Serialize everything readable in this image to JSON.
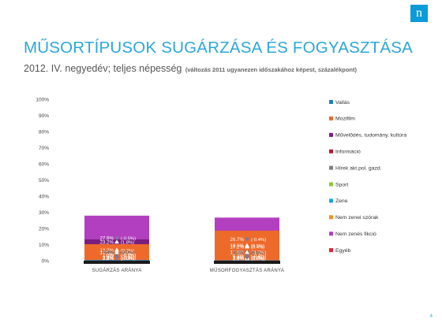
{
  "header": {
    "title": "MŰSORTÍPUSOK SUGÁRZÁSA ÉS FOGYASZTÁSA",
    "subtitle": "2012. IV. negyedév; teljes népesség",
    "subtitle_note": "(változás 2011 ugyanezen időszakához képest, százalékpont)"
  },
  "logo": {
    "glyph": "n",
    "color": "#0a9bd8"
  },
  "page_number": "4",
  "colors": {
    "up_arrow": "#ffffff",
    "down_arrow": "#7a7a9a"
  },
  "chart_data": {
    "type": "bar",
    "stacked": true,
    "categories": [
      "SUGÁRZÁS ARÁNYA",
      "MŰSORFOGYASZTÁS ARÁNYA"
    ],
    "ylim": [
      0,
      100
    ],
    "yticks": [
      "0%",
      "10%",
      "20%",
      "30%",
      "40%",
      "50%",
      "60%",
      "70%",
      "80%",
      "90%",
      "100%"
    ],
    "legend_position": "right",
    "series": [
      {
        "name": "Egyéb",
        "color": "#e8203a",
        "values": [
          23.2,
          17.2
        ],
        "labels": [
          "23.2%",
          "17.2%"
        ],
        "changes": [
          "(1.8%)",
          "(0.4%)"
        ],
        "directions": [
          "up",
          "up"
        ]
      },
      {
        "name": "Nem zenés fikció",
        "color": "#b23fc0",
        "values": [
          27.9,
          26.7
        ],
        "labels": [
          "27.9%",
          "26.7%"
        ],
        "changes": [
          "(-0.5%)",
          "(-0.4%)"
        ],
        "directions": [
          "down",
          "down"
        ]
      },
      {
        "name": "Nem zenei szórak",
        "color": "#f5901e",
        "values": [
          7.0,
          10.5
        ],
        "labels": [
          "7.0%",
          "10.5%"
        ],
        "changes": [
          "(-0.7%)",
          "(-1.2%)"
        ],
        "directions": [
          "down",
          "down"
        ]
      },
      {
        "name": "Zene",
        "color": "#1fa3d9",
        "values": [
          3.8,
          3.8
        ],
        "labels": [
          "3.8%",
          "3.8%"
        ],
        "changes": [
          "(-0.3%)",
          "(0.7%)"
        ],
        "directions": [
          "down",
          "up"
        ]
      },
      {
        "name": "Sport",
        "color": "#8cc63f",
        "values": [
          7.5,
          2.6
        ],
        "labels": [
          "7.5%",
          "2.6%"
        ],
        "changes": [
          "(-0.8%)",
          "(0.6%)"
        ],
        "directions": [
          "down",
          "up"
        ]
      },
      {
        "name": "Hírek akt.pol. gazd.",
        "color": "#808080",
        "values": [
          3.2,
          10.3
        ],
        "labels": [
          "3.2%",
          "10.3%"
        ],
        "changes": [
          "(0.0%)",
          "(0.6%)"
        ],
        "directions": [
          "none",
          "up"
        ]
      },
      {
        "name": "Információ",
        "color": "#b01e2e",
        "values": [
          3.6,
          6.5
        ],
        "labels": [
          "3.6%",
          "6.5%"
        ],
        "changes": [
          "(-0.7%)",
          "(-0.4%)"
        ],
        "directions": [
          "down",
          "down"
        ]
      },
      {
        "name": "Művelődés, tudomány, kultúra",
        "color": "#7a1e7e",
        "values": [
          13.2,
          3.6
        ],
        "labels": [
          "13.2%",
          "3.6%"
        ],
        "changes": [
          "(0.3%)",
          "(-0.5%)"
        ],
        "directions": [
          "up",
          "down"
        ]
      },
      {
        "name": "Mozifilm",
        "color": "#ee6a2b",
        "values": [
          10.2,
          18.6
        ],
        "labels": [
          "10.2%",
          "18.6%"
        ],
        "changes": [
          "(0.8%)",
          "(0.5%)"
        ],
        "directions": [
          "up",
          "up"
        ]
      },
      {
        "name": "Vallás",
        "color": "#1f7fc0",
        "values": [
          0.4,
          0.2
        ],
        "labels": [
          "0.4%",
          "0.2%"
        ],
        "changes": [
          "(0.0%)",
          "(0.0%)"
        ],
        "directions": [
          "none",
          "none"
        ]
      }
    ]
  }
}
